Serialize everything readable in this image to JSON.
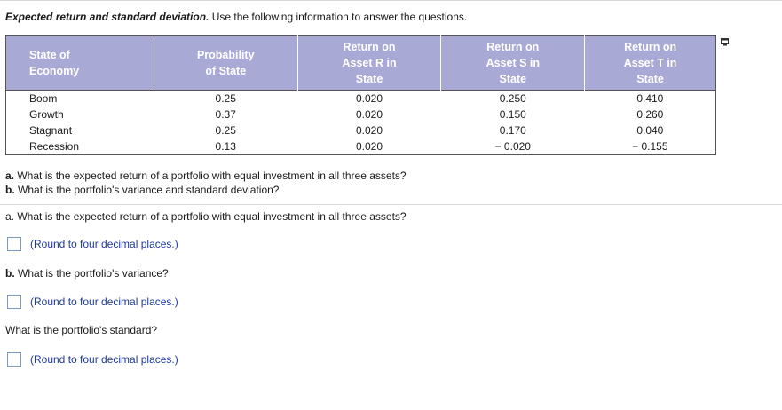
{
  "header": {
    "title": "Expected return and standard deviation.",
    "instruction": "Use the following information to answer the questions."
  },
  "table": {
    "headers": {
      "state": [
        "State of",
        "Economy"
      ],
      "probability": [
        "Probability",
        "of State"
      ],
      "asset_r": [
        "Return on",
        "Asset R in",
        "State"
      ],
      "asset_s": [
        "Return on",
        "Asset S in",
        "State"
      ],
      "asset_t": [
        "Return on",
        "Asset T in",
        "State"
      ]
    },
    "rows": [
      {
        "state": "Boom",
        "probability": "0.25",
        "r": "0.020",
        "s": "0.250",
        "t": "0.410"
      },
      {
        "state": "Growth",
        "probability": "0.37",
        "r": "0.020",
        "s": "0.150",
        "t": "0.260"
      },
      {
        "state": "Stagnant",
        "probability": "0.25",
        "r": "0.020",
        "s": "0.170",
        "t": "0.040"
      },
      {
        "state": "Recession",
        "probability": "0.13",
        "r": "0.020",
        "s": "− 0.020",
        "t": "− 0.155"
      }
    ]
  },
  "questions": {
    "a_letter": "a.",
    "a_text": "What is the expected return of a portfolio with equal investment in all three assets?",
    "b_letter": "b.",
    "b_text": "What is the portfolio's variance and standard deviation?"
  },
  "parts": {
    "a_letter": "a.",
    "a_text": "What is the expected return of a portfolio with equal investment in all three assets?",
    "a_hint": "(Round to four decimal places.)",
    "b_letter": "b.",
    "b_text": "What is the portfolio's variance?",
    "b_hint": "(Round to four decimal places.)",
    "c_text": "What is the portfolio's standard?",
    "c_hint": "(Round to four decimal places.)"
  },
  "icons": {
    "copy": "copy-table-icon"
  },
  "colors": {
    "header_bg": "#a9a9d6",
    "hint_text": "#1d3a9e",
    "input_border": "#7a9ac4"
  }
}
